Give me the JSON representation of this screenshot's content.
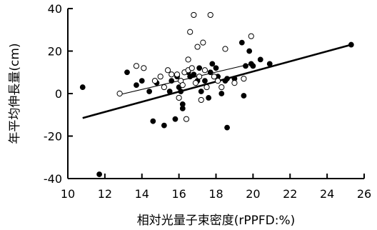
{
  "chart_data": {
    "type": "scatter",
    "xlabel": "相対光量子束密度(rPPFD:%)",
    "ylabel": "年平均伸長量(cm)",
    "xlim": [
      10,
      26
    ],
    "ylim": [
      -40,
      40
    ],
    "xticks": [
      10,
      12,
      14,
      16,
      18,
      20,
      22,
      24,
      26
    ],
    "yticks": [
      -40,
      -20,
      0,
      20,
      40
    ],
    "grid": false,
    "series": [
      {
        "marker": "filled-circle",
        "points": [
          [
            10.8,
            3
          ],
          [
            11.7,
            -38
          ],
          [
            13.2,
            10
          ],
          [
            13.7,
            4
          ],
          [
            14.0,
            6
          ],
          [
            14.4,
            1
          ],
          [
            14.6,
            -13
          ],
          [
            14.8,
            5
          ],
          [
            15.2,
            -15
          ],
          [
            15.5,
            1
          ],
          [
            15.6,
            6
          ],
          [
            15.8,
            -12
          ],
          [
            15.9,
            8
          ],
          [
            16.0,
            3
          ],
          [
            16.1,
            1
          ],
          [
            16.2,
            -5
          ],
          [
            16.2,
            -7
          ],
          [
            16.5,
            10
          ],
          [
            16.6,
            8
          ],
          [
            16.8,
            9
          ],
          [
            17.0,
            6
          ],
          [
            17.1,
            12
          ],
          [
            17.2,
            1
          ],
          [
            17.4,
            6
          ],
          [
            17.6,
            -2
          ],
          [
            17.7,
            10
          ],
          [
            17.8,
            14
          ],
          [
            18.0,
            12
          ],
          [
            18.1,
            8
          ],
          [
            18.3,
            0
          ],
          [
            18.5,
            6
          ],
          [
            18.6,
            -16
          ],
          [
            18.6,
            7
          ],
          [
            19.0,
            7
          ],
          [
            19.4,
            24
          ],
          [
            19.5,
            -1
          ],
          [
            19.6,
            13
          ],
          [
            19.8,
            20
          ],
          [
            19.9,
            14
          ],
          [
            20.0,
            13
          ],
          [
            20.4,
            16
          ],
          [
            20.9,
            14
          ],
          [
            25.3,
            23
          ]
        ]
      },
      {
        "marker": "open-circle",
        "points": [
          [
            12.8,
            0
          ],
          [
            13.7,
            13
          ],
          [
            14.1,
            12
          ],
          [
            14.7,
            6
          ],
          [
            15.0,
            8
          ],
          [
            15.2,
            3
          ],
          [
            15.4,
            11
          ],
          [
            15.6,
            9
          ],
          [
            15.9,
            9
          ],
          [
            16.0,
            -2
          ],
          [
            16.1,
            6
          ],
          [
            16.2,
            4
          ],
          [
            16.3,
            10
          ],
          [
            16.4,
            -12
          ],
          [
            16.5,
            11
          ],
          [
            16.5,
            16
          ],
          [
            16.6,
            29
          ],
          [
            16.7,
            12
          ],
          [
            16.8,
            37
          ],
          [
            16.9,
            5
          ],
          [
            17.0,
            22
          ],
          [
            17.1,
            8
          ],
          [
            17.2,
            -3
          ],
          [
            17.3,
            24
          ],
          [
            17.4,
            11
          ],
          [
            17.5,
            3
          ],
          [
            17.7,
            37
          ],
          [
            17.9,
            8
          ],
          [
            18.1,
            6
          ],
          [
            18.3,
            3
          ],
          [
            18.5,
            21
          ],
          [
            19.0,
            5
          ],
          [
            19.5,
            7
          ],
          [
            19.9,
            27
          ]
        ]
      }
    ],
    "trendlines": [
      {
        "style": "thick",
        "x": [
          10.8,
          25.3
        ],
        "y": [
          -11.5,
          23
        ]
      },
      {
        "style": "thin",
        "x": [
          12.8,
          19.9
        ],
        "y": [
          -0.5,
          14
        ]
      }
    ]
  }
}
